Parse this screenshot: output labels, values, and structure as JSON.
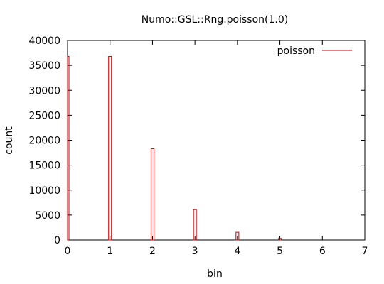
{
  "chart_data": {
    "type": "bar",
    "title": "Numo::GSL::Rng.poisson(1.0)",
    "xlabel": "bin",
    "ylabel": "count",
    "xlim": [
      0,
      7
    ],
    "ylim": [
      0,
      40000
    ],
    "xticks": [
      "0",
      "1",
      "2",
      "3",
      "4",
      "5",
      "6",
      "7"
    ],
    "yticks": [
      "0",
      "5000",
      "10000",
      "15000",
      "20000",
      "25000",
      "30000",
      "35000",
      "40000"
    ],
    "legend": "top-right",
    "series": [
      {
        "name": "poisson",
        "color": "#cc0000",
        "x": [
          0,
          1,
          2,
          3,
          4,
          5
        ],
        "values": [
          36800,
          36800,
          18300,
          6100,
          1550,
          310
        ]
      }
    ],
    "grid": false
  }
}
